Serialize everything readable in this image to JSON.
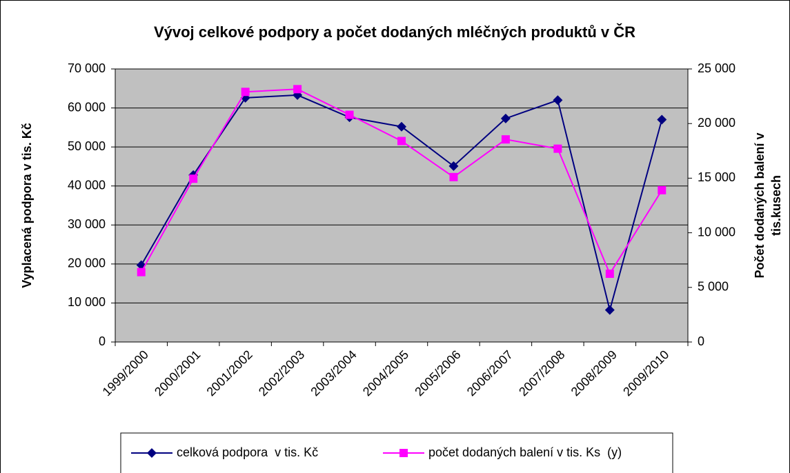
{
  "chart_data": {
    "type": "line",
    "title": "Vývoj celkové podpory a počet dodaných mléčných produktů v ČR",
    "ylabel": "Vyplacená podpora v tis. Kč",
    "y2label": [
      "Počet dodaných balení v",
      "tis.kusech"
    ],
    "categories": [
      "1999/2000",
      "2000/2001",
      "2001/2002",
      "2002/2003",
      "2003/2004",
      "2004/2005",
      "2005/2006",
      "2006/2007",
      "2007/2008",
      "2008/2009",
      "2009/2010"
    ],
    "series": [
      {
        "name": "celková podpora  v tis. Kč",
        "color": "#000080",
        "marker": "diamond",
        "values": [
          19700,
          42800,
          62600,
          63300,
          57600,
          55200,
          45100,
          57300,
          62000,
          8200,
          57000
        ]
      },
      {
        "name": "počet dodaných balení v tis. Ks  (y)",
        "color": "#ff00ff",
        "marker": "square",
        "axis": "y2",
        "values": [
          6400,
          14950,
          22900,
          23150,
          20800,
          18400,
          15100,
          18550,
          17700,
          6250,
          13900
        ]
      }
    ],
    "ylim": [
      0,
      70000
    ],
    "yticks": [
      0,
      {
        "value": 10000,
        "label": "10 000"
      },
      {
        "value": 20000,
        "label": "20 000"
      },
      {
        "value": 30000,
        "label": "30 000"
      },
      {
        "value": 40000,
        "label": "40 000"
      },
      {
        "value": 50000,
        "label": "50 000"
      },
      {
        "value": 60000,
        "label": "60 000"
      },
      {
        "value": 70000,
        "label": "70 000"
      }
    ],
    "y2lim": [
      0,
      25000
    ],
    "y2ticks": [
      0,
      {
        "value": 5000,
        "label": "5 000"
      },
      {
        "value": 10000,
        "label": "10 000"
      },
      {
        "value": 15000,
        "label": "15 000"
      },
      {
        "value": 20000,
        "label": "20 000"
      },
      {
        "value": 25000,
        "label": "25 000"
      }
    ],
    "grid": true,
    "plot_background": "#c0c0c0",
    "legend": "bottom"
  }
}
